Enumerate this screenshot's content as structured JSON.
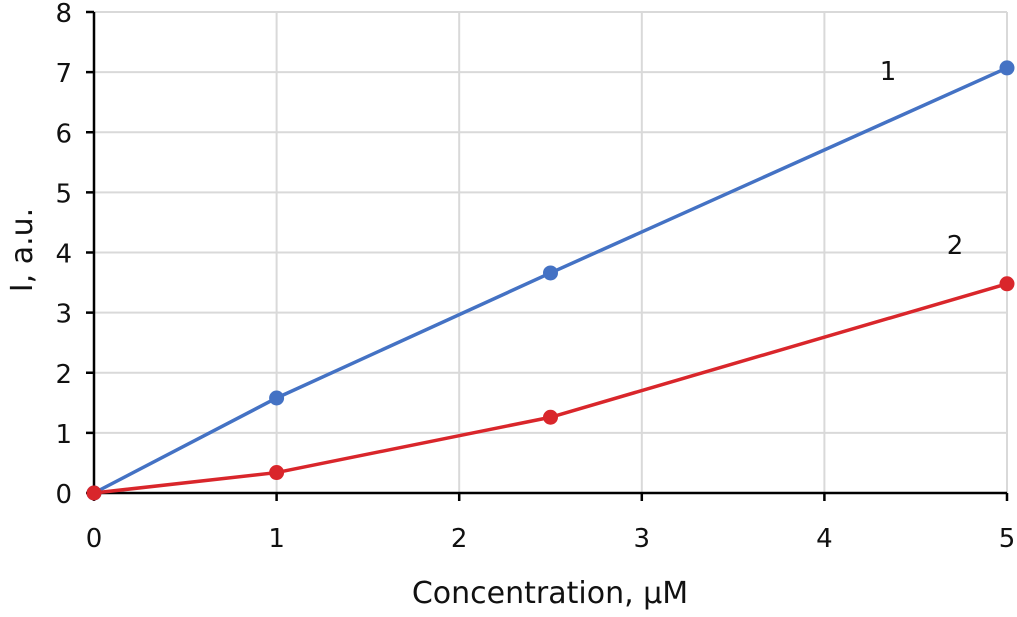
{
  "chart_data": {
    "type": "line",
    "title": "",
    "xlabel": "Concentration, µM",
    "ylabel": "I, a.u.",
    "xlim": [
      0,
      5
    ],
    "ylim": [
      0,
      8
    ],
    "xticks": [
      "0",
      "1",
      "2",
      "3",
      "4",
      "5"
    ],
    "yticks": [
      "0",
      "1",
      "2",
      "3",
      "4",
      "5",
      "6",
      "7",
      "8"
    ],
    "grid": true,
    "series": [
      {
        "label": "1",
        "color": "#4472C4",
        "x": [
          0,
          1,
          2.5,
          5
        ],
        "y": [
          0,
          1.58,
          3.66,
          7.07
        ]
      },
      {
        "label": "2",
        "color": "#D9262B",
        "x": [
          0,
          1,
          2.5,
          5
        ],
        "y": [
          0,
          0.34,
          1.26,
          3.48
        ]
      }
    ]
  }
}
